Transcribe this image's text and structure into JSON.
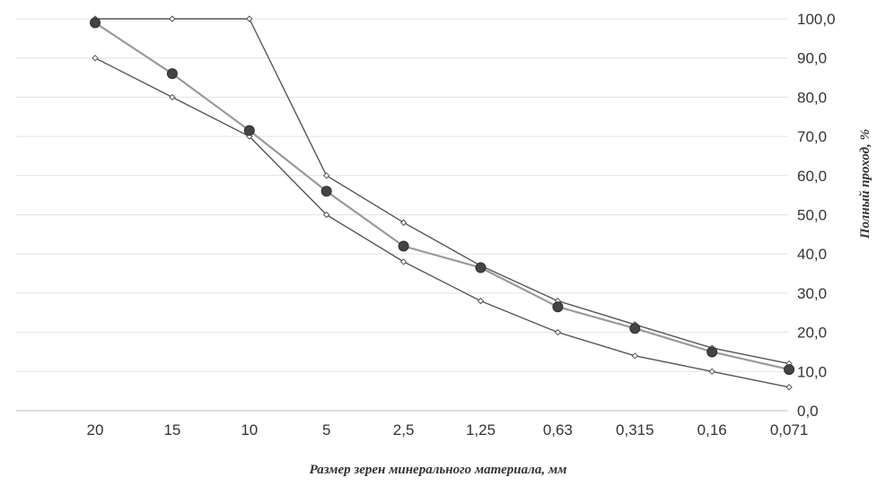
{
  "chart_data": {
    "type": "line",
    "xlabel": "Размер зерен минерального материала, мм",
    "ylabel": "Полный проход, %",
    "categories": [
      "20",
      "15",
      "10",
      "5",
      "2,5",
      "1,25",
      "0,63",
      "0,315",
      "0,16",
      "0,071"
    ],
    "y_ticks": [
      "0,0",
      "10,0",
      "20,0",
      "30,0",
      "40,0",
      "50,0",
      "60,0",
      "70,0",
      "80,0",
      "90,0",
      "100,0"
    ],
    "ylim": [
      0,
      100
    ],
    "y_axis_side": "right",
    "grid": true,
    "legend": "none",
    "series": [
      {
        "values": [
          100,
          100,
          100,
          60,
          48,
          37,
          28,
          22,
          16,
          12
        ],
        "color": "#555555",
        "marker": "open-diamond"
      },
      {
        "values": [
          90,
          80,
          70,
          50,
          38,
          28,
          20,
          14,
          10,
          6
        ],
        "color": "#555555",
        "marker": "open-diamond"
      },
      {
        "values": [
          99,
          86,
          71.5,
          56,
          42,
          36.5,
          26.5,
          21,
          15,
          10.5
        ],
        "color": "#9a9a9a",
        "marker": "filled-circle"
      }
    ]
  }
}
